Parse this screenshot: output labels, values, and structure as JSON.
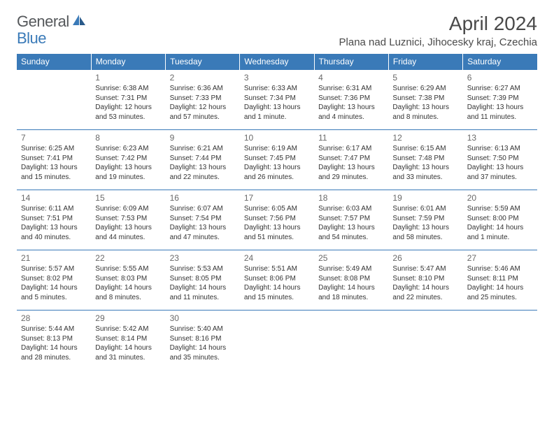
{
  "logo": {
    "general": "General",
    "blue": "Blue"
  },
  "header": {
    "title": "April 2024",
    "location": "Plana nad Luznici, Jihocesky kraj, Czechia"
  },
  "colors": {
    "header_bg": "#3a7ab8",
    "header_text": "#ffffff",
    "row_border": "#3a7ab8",
    "daynum": "#6a6a6a",
    "body_text": "#333333",
    "logo_general": "#55585b",
    "logo_blue": "#3a7ab8"
  },
  "weekdays": [
    "Sunday",
    "Monday",
    "Tuesday",
    "Wednesday",
    "Thursday",
    "Friday",
    "Saturday"
  ],
  "weeks": [
    [
      {
        "day": "",
        "sunrise": "",
        "sunset": "",
        "daylight": ""
      },
      {
        "day": "1",
        "sunrise": "Sunrise: 6:38 AM",
        "sunset": "Sunset: 7:31 PM",
        "daylight": "Daylight: 12 hours and 53 minutes."
      },
      {
        "day": "2",
        "sunrise": "Sunrise: 6:36 AM",
        "sunset": "Sunset: 7:33 PM",
        "daylight": "Daylight: 12 hours and 57 minutes."
      },
      {
        "day": "3",
        "sunrise": "Sunrise: 6:33 AM",
        "sunset": "Sunset: 7:34 PM",
        "daylight": "Daylight: 13 hours and 1 minute."
      },
      {
        "day": "4",
        "sunrise": "Sunrise: 6:31 AM",
        "sunset": "Sunset: 7:36 PM",
        "daylight": "Daylight: 13 hours and 4 minutes."
      },
      {
        "day": "5",
        "sunrise": "Sunrise: 6:29 AM",
        "sunset": "Sunset: 7:38 PM",
        "daylight": "Daylight: 13 hours and 8 minutes."
      },
      {
        "day": "6",
        "sunrise": "Sunrise: 6:27 AM",
        "sunset": "Sunset: 7:39 PM",
        "daylight": "Daylight: 13 hours and 11 minutes."
      }
    ],
    [
      {
        "day": "7",
        "sunrise": "Sunrise: 6:25 AM",
        "sunset": "Sunset: 7:41 PM",
        "daylight": "Daylight: 13 hours and 15 minutes."
      },
      {
        "day": "8",
        "sunrise": "Sunrise: 6:23 AM",
        "sunset": "Sunset: 7:42 PM",
        "daylight": "Daylight: 13 hours and 19 minutes."
      },
      {
        "day": "9",
        "sunrise": "Sunrise: 6:21 AM",
        "sunset": "Sunset: 7:44 PM",
        "daylight": "Daylight: 13 hours and 22 minutes."
      },
      {
        "day": "10",
        "sunrise": "Sunrise: 6:19 AM",
        "sunset": "Sunset: 7:45 PM",
        "daylight": "Daylight: 13 hours and 26 minutes."
      },
      {
        "day": "11",
        "sunrise": "Sunrise: 6:17 AM",
        "sunset": "Sunset: 7:47 PM",
        "daylight": "Daylight: 13 hours and 29 minutes."
      },
      {
        "day": "12",
        "sunrise": "Sunrise: 6:15 AM",
        "sunset": "Sunset: 7:48 PM",
        "daylight": "Daylight: 13 hours and 33 minutes."
      },
      {
        "day": "13",
        "sunrise": "Sunrise: 6:13 AM",
        "sunset": "Sunset: 7:50 PM",
        "daylight": "Daylight: 13 hours and 37 minutes."
      }
    ],
    [
      {
        "day": "14",
        "sunrise": "Sunrise: 6:11 AM",
        "sunset": "Sunset: 7:51 PM",
        "daylight": "Daylight: 13 hours and 40 minutes."
      },
      {
        "day": "15",
        "sunrise": "Sunrise: 6:09 AM",
        "sunset": "Sunset: 7:53 PM",
        "daylight": "Daylight: 13 hours and 44 minutes."
      },
      {
        "day": "16",
        "sunrise": "Sunrise: 6:07 AM",
        "sunset": "Sunset: 7:54 PM",
        "daylight": "Daylight: 13 hours and 47 minutes."
      },
      {
        "day": "17",
        "sunrise": "Sunrise: 6:05 AM",
        "sunset": "Sunset: 7:56 PM",
        "daylight": "Daylight: 13 hours and 51 minutes."
      },
      {
        "day": "18",
        "sunrise": "Sunrise: 6:03 AM",
        "sunset": "Sunset: 7:57 PM",
        "daylight": "Daylight: 13 hours and 54 minutes."
      },
      {
        "day": "19",
        "sunrise": "Sunrise: 6:01 AM",
        "sunset": "Sunset: 7:59 PM",
        "daylight": "Daylight: 13 hours and 58 minutes."
      },
      {
        "day": "20",
        "sunrise": "Sunrise: 5:59 AM",
        "sunset": "Sunset: 8:00 PM",
        "daylight": "Daylight: 14 hours and 1 minute."
      }
    ],
    [
      {
        "day": "21",
        "sunrise": "Sunrise: 5:57 AM",
        "sunset": "Sunset: 8:02 PM",
        "daylight": "Daylight: 14 hours and 5 minutes."
      },
      {
        "day": "22",
        "sunrise": "Sunrise: 5:55 AM",
        "sunset": "Sunset: 8:03 PM",
        "daylight": "Daylight: 14 hours and 8 minutes."
      },
      {
        "day": "23",
        "sunrise": "Sunrise: 5:53 AM",
        "sunset": "Sunset: 8:05 PM",
        "daylight": "Daylight: 14 hours and 11 minutes."
      },
      {
        "day": "24",
        "sunrise": "Sunrise: 5:51 AM",
        "sunset": "Sunset: 8:06 PM",
        "daylight": "Daylight: 14 hours and 15 minutes."
      },
      {
        "day": "25",
        "sunrise": "Sunrise: 5:49 AM",
        "sunset": "Sunset: 8:08 PM",
        "daylight": "Daylight: 14 hours and 18 minutes."
      },
      {
        "day": "26",
        "sunrise": "Sunrise: 5:47 AM",
        "sunset": "Sunset: 8:10 PM",
        "daylight": "Daylight: 14 hours and 22 minutes."
      },
      {
        "day": "27",
        "sunrise": "Sunrise: 5:46 AM",
        "sunset": "Sunset: 8:11 PM",
        "daylight": "Daylight: 14 hours and 25 minutes."
      }
    ],
    [
      {
        "day": "28",
        "sunrise": "Sunrise: 5:44 AM",
        "sunset": "Sunset: 8:13 PM",
        "daylight": "Daylight: 14 hours and 28 minutes."
      },
      {
        "day": "29",
        "sunrise": "Sunrise: 5:42 AM",
        "sunset": "Sunset: 8:14 PM",
        "daylight": "Daylight: 14 hours and 31 minutes."
      },
      {
        "day": "30",
        "sunrise": "Sunrise: 5:40 AM",
        "sunset": "Sunset: 8:16 PM",
        "daylight": "Daylight: 14 hours and 35 minutes."
      },
      {
        "day": "",
        "sunrise": "",
        "sunset": "",
        "daylight": ""
      },
      {
        "day": "",
        "sunrise": "",
        "sunset": "",
        "daylight": ""
      },
      {
        "day": "",
        "sunrise": "",
        "sunset": "",
        "daylight": ""
      },
      {
        "day": "",
        "sunrise": "",
        "sunset": "",
        "daylight": ""
      }
    ]
  ]
}
